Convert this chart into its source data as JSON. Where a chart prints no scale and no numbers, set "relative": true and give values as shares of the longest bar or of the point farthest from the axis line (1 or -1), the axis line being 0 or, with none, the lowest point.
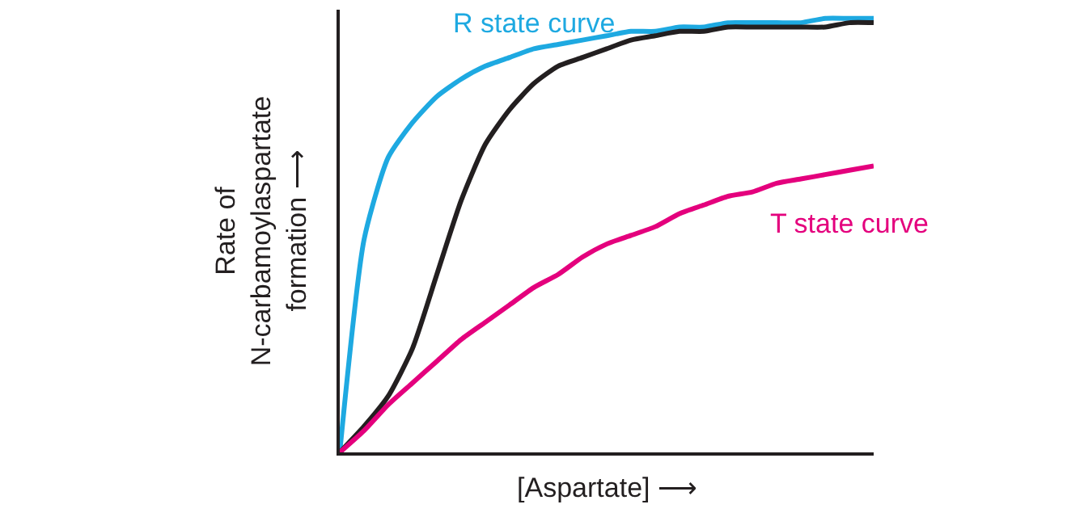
{
  "chart_data": {
    "type": "line",
    "relative": true,
    "xlabel": "[Aspartate] ⟶",
    "ylabel": "Rate of\nN-carbamoylaspartate\nformation ⟶",
    "legend": false,
    "grid": false,
    "marker": "none",
    "line_style": "solid",
    "categories": [
      null,
      null,
      null,
      null,
      null,
      null,
      null,
      null,
      null,
      null,
      null,
      null,
      null,
      null,
      null,
      null,
      null,
      null,
      null,
      null,
      null,
      null,
      null
    ],
    "series": [
      {
        "name": "R state curve",
        "color": "#1ea9e1",
        "values": [
          0,
          0.49,
          0.68,
          0.76,
          0.82,
          0.86,
          0.89,
          0.91,
          0.93,
          0.94,
          0.95,
          0.96,
          0.97,
          0.97,
          0.98,
          0.98,
          0.99,
          0.99,
          0.99,
          0.99,
          1,
          1,
          1
        ]
      },
      {
        "color": "#231f20",
        "values": [
          0,
          0.06,
          0.13,
          0.24,
          0.41,
          0.58,
          0.71,
          0.79,
          0.85,
          0.89,
          0.91,
          0.93,
          0.95,
          0.96,
          0.97,
          0.97,
          0.98,
          0.98,
          0.98,
          0.98,
          0.98,
          0.99,
          0.99
        ]
      },
      {
        "name": "T state curve",
        "color": "#e4007d",
        "values": [
          0,
          0.05,
          0.11,
          0.16,
          0.21,
          0.26,
          0.3,
          0.34,
          0.38,
          0.41,
          0.45,
          0.48,
          0.5,
          0.52,
          0.55,
          0.57,
          0.59,
          0.6,
          0.62,
          0.63,
          0.64,
          0.65,
          0.66
        ]
      }
    ]
  }
}
